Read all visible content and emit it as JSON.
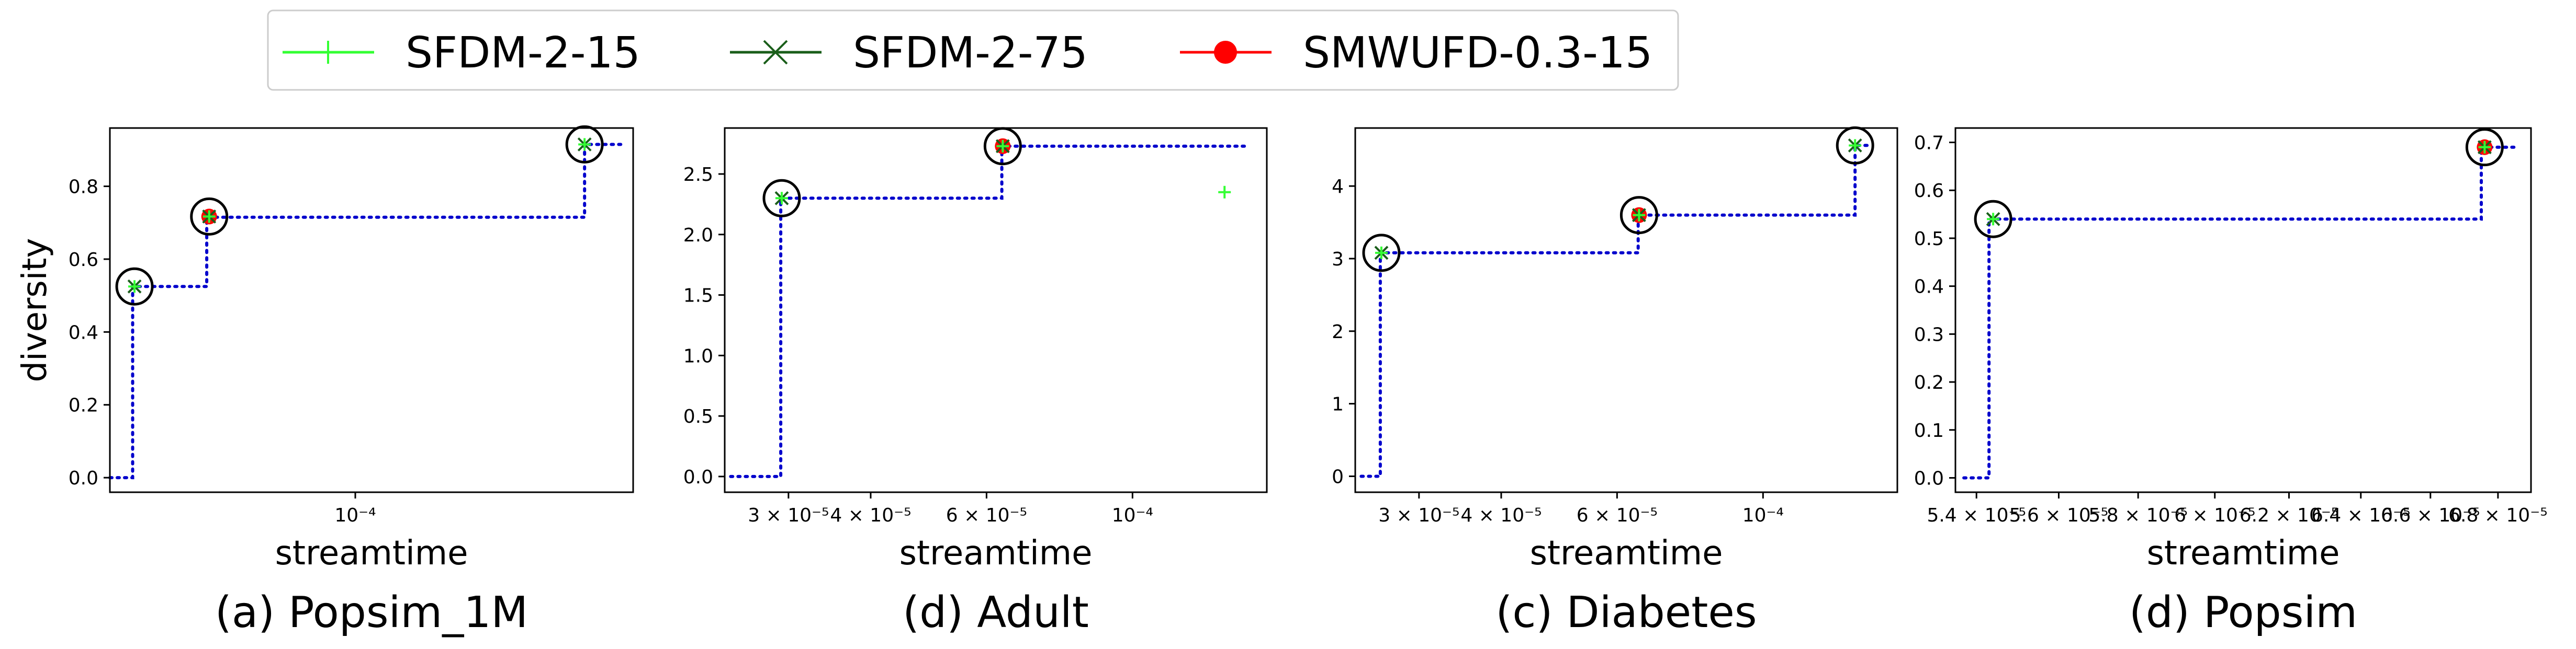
{
  "legend": {
    "entries": [
      {
        "label": "SFDM-2-15",
        "color": "#33ff33",
        "marker": "plus"
      },
      {
        "label": "SFDM-2-75",
        "color": "#1a5e1a",
        "marker": "x"
      },
      {
        "label": "SMWUFD-0.3-15",
        "color": "#ff0000",
        "marker": "circle"
      }
    ]
  },
  "colors": {
    "step_line": "#0000cc",
    "highlight_circle": "#000000"
  },
  "chart_data": [
    {
      "type": "line",
      "caption": "(a) Popsim_1M",
      "xlabel": "streamtime",
      "ylabel": "diversity",
      "xscale": "log",
      "xlim": [
        4.3e-05,
        0.00026
      ],
      "ylim": [
        -0.04,
        0.96
      ],
      "xticks": [
        {
          "value": 0.0001,
          "label": "10⁻⁴"
        }
      ],
      "yticks": [
        {
          "value": 0.0,
          "label": "0.0"
        },
        {
          "value": 0.2,
          "label": "0.2"
        },
        {
          "value": 0.4,
          "label": "0.4"
        },
        {
          "value": 0.6,
          "label": "0.6"
        },
        {
          "value": 0.8,
          "label": "0.8"
        }
      ],
      "step": {
        "x": [
          4.3e-05,
          4.65e-05,
          4.65e-05,
          6e-05,
          6e-05,
          0.00022,
          0.00022,
          0.00025
        ],
        "y": [
          0.0,
          0.0,
          0.525,
          0.525,
          0.715,
          0.715,
          0.915,
          0.915
        ]
      },
      "series": [
        {
          "name": "SFDM-2-15",
          "x": [
            4.68e-05,
            6.05e-05,
            0.00022
          ],
          "y": [
            0.525,
            0.717,
            0.915
          ]
        },
        {
          "name": "SFDM-2-75",
          "x": [
            4.68e-05,
            6.05e-05,
            0.00022
          ],
          "y": [
            0.525,
            0.717,
            0.915
          ]
        },
        {
          "name": "SMWUFD-0.3-15",
          "x": [
            6.05e-05
          ],
          "y": [
            0.717
          ]
        }
      ],
      "circled": {
        "x": [
          4.68e-05,
          6.05e-05,
          0.00022
        ],
        "y": [
          0.525,
          0.717,
          0.915
        ]
      }
    },
    {
      "type": "line",
      "caption": "(d) Adult",
      "xlabel": "streamtime",
      "ylabel": "",
      "xscale": "log",
      "xlim": [
        2.4e-05,
        0.00016
      ],
      "ylim": [
        -0.13,
        2.88
      ],
      "xticks": [
        {
          "value": 3e-05,
          "label": "3 × 10⁻⁵"
        },
        {
          "value": 4e-05,
          "label": "4 × 10⁻⁵"
        },
        {
          "value": 6e-05,
          "label": "6 × 10⁻⁵"
        },
        {
          "value": 0.0001,
          "label": "10⁻⁴"
        }
      ],
      "yticks": [
        {
          "value": 0.0,
          "label": "0.0"
        },
        {
          "value": 0.5,
          "label": "0.5"
        },
        {
          "value": 1.0,
          "label": "1.0"
        },
        {
          "value": 1.5,
          "label": "1.5"
        },
        {
          "value": 2.0,
          "label": "2.0"
        },
        {
          "value": 2.5,
          "label": "2.5"
        }
      ],
      "step": {
        "x": [
          2.45e-05,
          2.92e-05,
          2.92e-05,
          6.33e-05,
          6.33e-05,
          0.00015
        ],
        "y": [
          0.0,
          0.0,
          2.3,
          2.3,
          2.73,
          2.73
        ]
      },
      "series": [
        {
          "name": "SFDM-2-15",
          "x": [
            2.93e-05,
            6.35e-05,
            0.000138
          ],
          "y": [
            2.3,
            2.73,
            2.35
          ]
        },
        {
          "name": "SFDM-2-75",
          "x": [
            2.93e-05,
            6.35e-05
          ],
          "y": [
            2.3,
            2.73
          ]
        },
        {
          "name": "SMWUFD-0.3-15",
          "x": [
            6.35e-05
          ],
          "y": [
            2.73
          ]
        }
      ],
      "circled": {
        "x": [
          2.93e-05,
          6.35e-05
        ],
        "y": [
          2.3,
          2.73
        ]
      }
    },
    {
      "type": "line",
      "caption": "(c) Diabetes",
      "xlabel": "streamtime",
      "ylabel": "",
      "xscale": "log",
      "xlim": [
        2.4e-05,
        0.00016
      ],
      "ylim": [
        -0.22,
        4.8
      ],
      "xticks": [
        {
          "value": 3e-05,
          "label": "3 × 10⁻⁵"
        },
        {
          "value": 4e-05,
          "label": "4 × 10⁻⁵"
        },
        {
          "value": 6e-05,
          "label": "6 × 10⁻⁵"
        },
        {
          "value": 0.0001,
          "label": "10⁻⁴"
        }
      ],
      "yticks": [
        {
          "value": 0,
          "label": "0"
        },
        {
          "value": 1,
          "label": "1"
        },
        {
          "value": 2,
          "label": "2"
        },
        {
          "value": 3,
          "label": "3"
        },
        {
          "value": 4,
          "label": "4"
        }
      ],
      "step": {
        "x": [
          2.45e-05,
          2.62e-05,
          2.62e-05,
          6.46e-05,
          6.46e-05,
          0.000138,
          0.000138,
          0.000145
        ],
        "y": [
          0.0,
          0.0,
          3.08,
          3.08,
          3.6,
          3.6,
          4.56,
          4.56
        ]
      },
      "series": [
        {
          "name": "SFDM-2-15",
          "x": [
            2.63e-05,
            6.48e-05,
            0.000138
          ],
          "y": [
            3.08,
            3.6,
            4.56
          ]
        },
        {
          "name": "SFDM-2-75",
          "x": [
            2.63e-05,
            6.48e-05,
            0.000138
          ],
          "y": [
            3.08,
            3.6,
            4.56
          ]
        },
        {
          "name": "SMWUFD-0.3-15",
          "x": [
            6.48e-05
          ],
          "y": [
            3.6
          ]
        }
      ],
      "circled": {
        "x": [
          2.63e-05,
          6.48e-05,
          0.000138
        ],
        "y": [
          3.08,
          3.6,
          4.56
        ]
      }
    },
    {
      "type": "line",
      "caption": "(d) Popsim",
      "xlabel": "streamtime",
      "ylabel": "",
      "xscale": "log",
      "xlim": [
        5.35e-05,
        6.9e-05
      ],
      "ylim": [
        -0.03,
        0.73
      ],
      "xticks": [
        {
          "value": 5.4e-05,
          "label": "5.4 × 10⁻⁵"
        },
        {
          "value": 5.6e-05,
          "label": "5.6 × 10⁻⁵"
        },
        {
          "value": 5.8e-05,
          "label": "5.8 × 10⁻⁵"
        },
        {
          "value": 6e-05,
          "label": "6 × 10⁻⁵"
        },
        {
          "value": 6.2e-05,
          "label": "6.2 × 10⁻⁵"
        },
        {
          "value": 6.4e-05,
          "label": "6.4 × 10⁻⁵"
        },
        {
          "value": 6.6e-05,
          "label": "6.6 × 10⁻⁵"
        },
        {
          "value": 6.8e-05,
          "label": "6.8 × 10⁻⁵"
        }
      ],
      "yticks": [
        {
          "value": 0.0,
          "label": "0.0"
        },
        {
          "value": 0.1,
          "label": "0.1"
        },
        {
          "value": 0.2,
          "label": "0.2"
        },
        {
          "value": 0.3,
          "label": "0.3"
        },
        {
          "value": 0.4,
          "label": "0.4"
        },
        {
          "value": 0.5,
          "label": "0.5"
        },
        {
          "value": 0.6,
          "label": "0.6"
        },
        {
          "value": 0.7,
          "label": "0.7"
        }
      ],
      "step": {
        "x": [
          5.37e-05,
          5.43e-05,
          5.43e-05,
          6.75e-05,
          6.75e-05,
          6.85e-05
        ],
        "y": [
          0.0,
          0.0,
          0.54,
          0.54,
          0.69,
          0.69
        ]
      },
      "series": [
        {
          "name": "SFDM-2-15",
          "x": [
            5.44e-05,
            6.76e-05
          ],
          "y": [
            0.54,
            0.69
          ]
        },
        {
          "name": "SFDM-2-75",
          "x": [
            5.44e-05,
            6.76e-05
          ],
          "y": [
            0.54,
            0.69
          ]
        },
        {
          "name": "SMWUFD-0.3-15",
          "x": [
            6.76e-05
          ],
          "y": [
            0.69
          ]
        }
      ],
      "circled": {
        "x": [
          5.44e-05,
          6.76e-05
        ],
        "y": [
          0.54,
          0.69
        ]
      }
    }
  ]
}
